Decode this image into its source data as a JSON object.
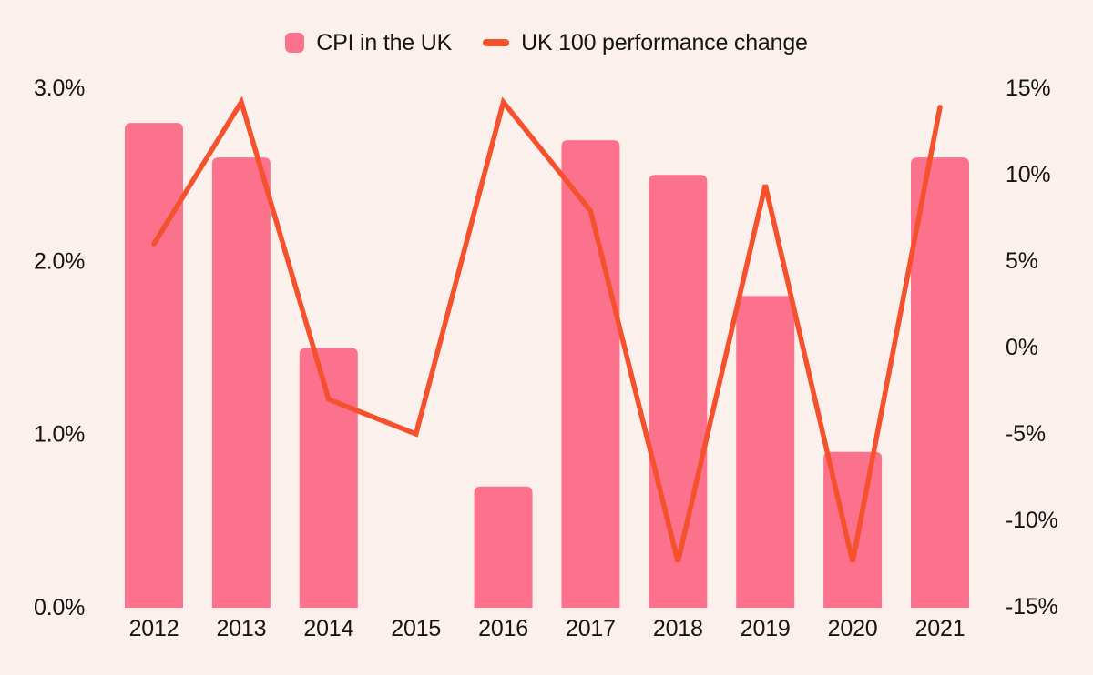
{
  "colors": {
    "background": "#fcf0ec",
    "bar": "#fc728c",
    "line": "#f4512c",
    "text": "#141414"
  },
  "legend": {
    "items": [
      {
        "label": "CPI in the UK",
        "swatch": "square-icon"
      },
      {
        "label": "UK 100 performance change",
        "swatch": "dash-icon"
      }
    ]
  },
  "chart_data": {
    "type": "bar",
    "subtype": "combo-bar-line-dual-axis",
    "title": "",
    "categories": [
      "2012",
      "2013",
      "2014",
      "2015",
      "2016",
      "2017",
      "2018",
      "2019",
      "2020",
      "2021"
    ],
    "series": [
      {
        "name": "CPI in the UK",
        "type": "bar",
        "axis": "left",
        "color": "#fc728c",
        "values": [
          2.8,
          2.6,
          1.5,
          0.0,
          0.7,
          2.7,
          2.5,
          1.8,
          0.9,
          2.6
        ]
      },
      {
        "name": "UK 100 performance change",
        "type": "line",
        "axis": "right",
        "color": "#f4512c",
        "values": [
          6.0,
          14.2,
          -3.0,
          -5.0,
          14.2,
          7.9,
          -12.4,
          9.4,
          -12.4,
          13.9
        ]
      }
    ],
    "left_axis": {
      "ticks": [
        "0.0%",
        "1.0%",
        "2.0%",
        "3.0%"
      ],
      "tick_values": [
        0,
        1,
        2,
        3
      ],
      "range": [
        0,
        3
      ]
    },
    "right_axis": {
      "ticks": [
        "-15%",
        "-10%",
        "-5%",
        "0%",
        "5%",
        "10%",
        "15%"
      ],
      "tick_values": [
        -15,
        -10,
        -5,
        0,
        5,
        10,
        15
      ],
      "range": [
        -15,
        15
      ]
    },
    "grid": false,
    "axis_lines": false,
    "legend_position": "top-center"
  }
}
